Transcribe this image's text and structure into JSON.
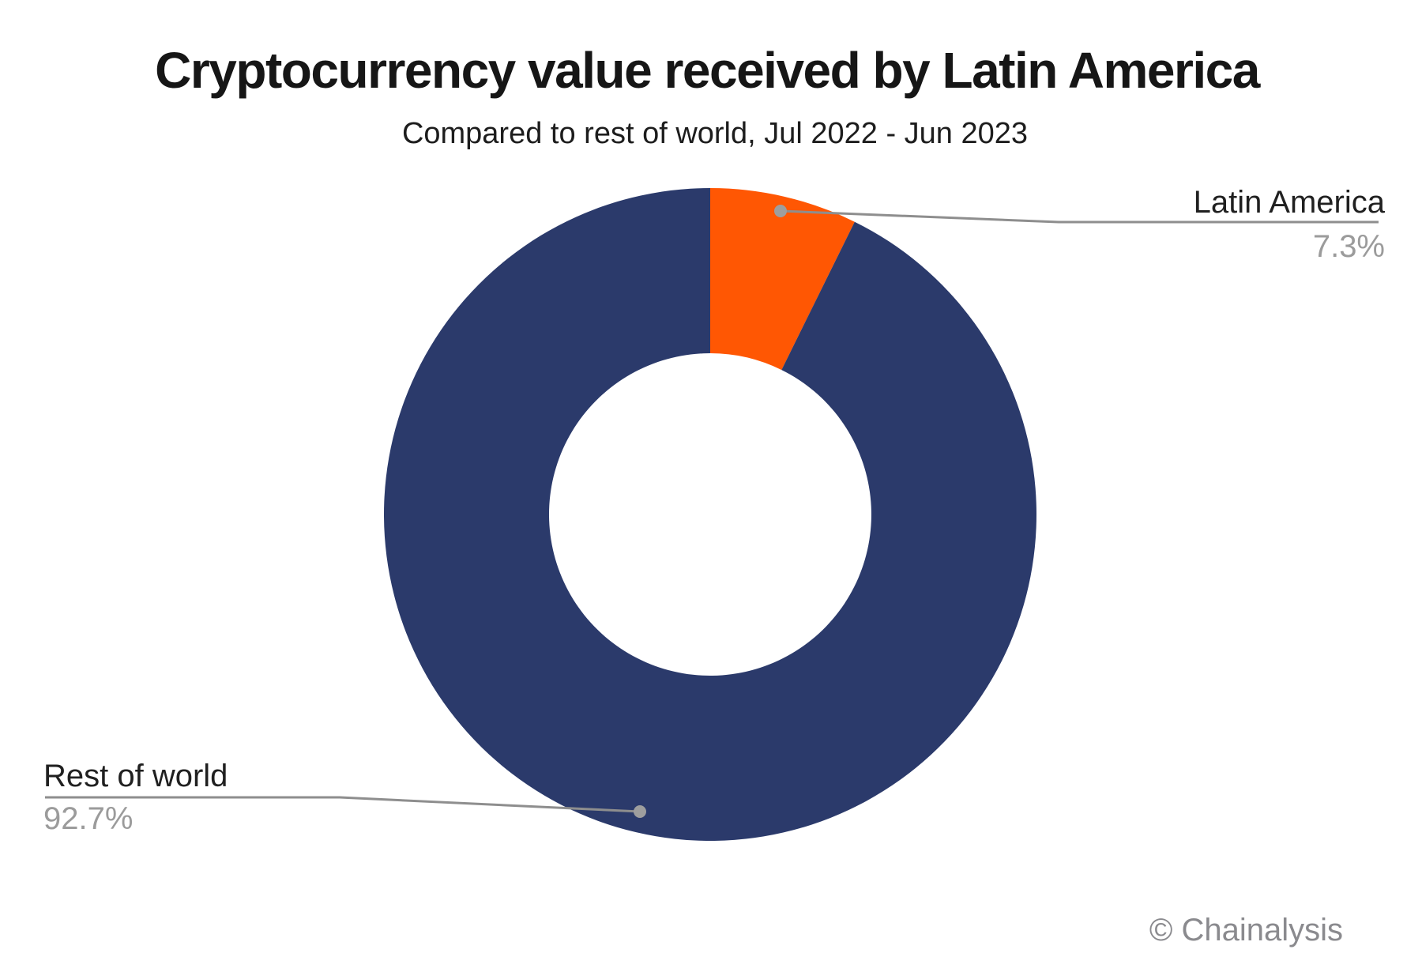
{
  "title": "Cryptocurrency value received by Latin America",
  "subtitle": "Compared to rest of world, Jul 2022 - Jun 2023",
  "watermark": "© Chainalysis",
  "colors": {
    "latin_america": "#FF5703",
    "rest_of_world": "#2B3A6B",
    "leader_line": "#8E8E8E",
    "leader_dot": "#9E9E9E",
    "label_text": "#202020",
    "value_text": "#9B9B9B",
    "watermark_text": "#8A8A8E",
    "background": "#FFFFFF"
  },
  "chart_data": {
    "type": "pie",
    "donut": true,
    "title": "Cryptocurrency value received by Latin America",
    "subtitle": "Compared to rest of world, Jul 2022 - Jun 2023",
    "categories": [
      "Latin America",
      "Rest of world"
    ],
    "values": [
      7.3,
      92.7
    ],
    "value_labels": [
      "7.3%",
      "92.7%"
    ],
    "slice_colors": [
      "#FF5703",
      "#2B3A6B"
    ],
    "start_angle_deg": 0,
    "direction": "clockwise",
    "legend_position": "none",
    "annotation_style": "leader-lines-with-dots"
  },
  "annotations": {
    "latin_america": {
      "label": "Latin America",
      "value": "7.3%"
    },
    "rest_of_world": {
      "label": "Rest of world",
      "value": "92.7%"
    }
  }
}
